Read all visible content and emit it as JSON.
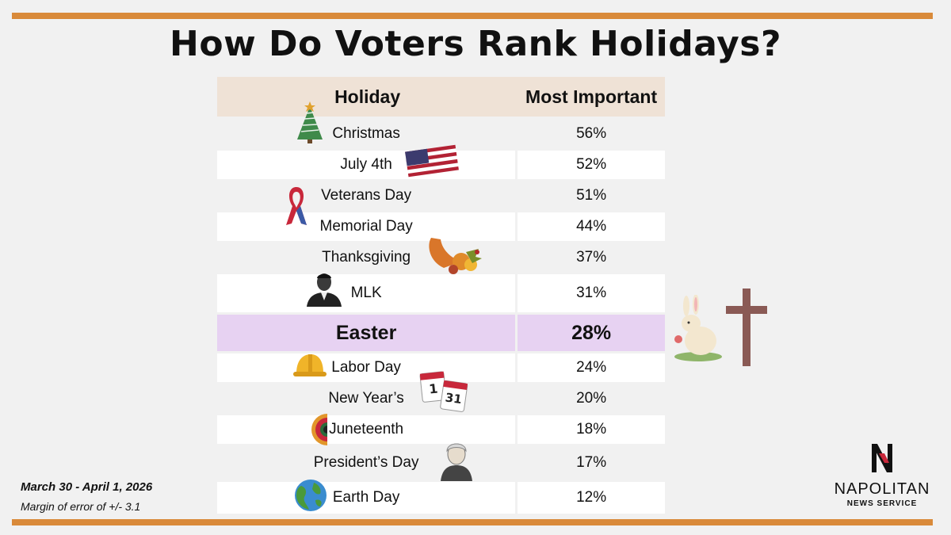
{
  "title": "How Do Voters Rank Holidays?",
  "chart_data": {
    "type": "table",
    "columns": [
      "Holiday",
      "Most Important"
    ],
    "rows": [
      {
        "label": "Christmas",
        "value": "56%",
        "icon": "christmas-tree-icon"
      },
      {
        "label": "July 4th",
        "value": "52%",
        "icon": "american-flag-icon"
      },
      {
        "label": "Veterans Day",
        "value": "51%",
        "icon": "ribbon-icon"
      },
      {
        "label": "Memorial Day",
        "value": "44%",
        "icon": ""
      },
      {
        "label": "Thanksgiving",
        "value": "37%",
        "icon": "cornucopia-icon"
      },
      {
        "label": "MLK",
        "value": "31%",
        "icon": "mlk-portrait-icon"
      },
      {
        "label": "Easter",
        "value": "28%",
        "icon": "easter-bunny-icon",
        "highlight": true
      },
      {
        "label": "Labor Day",
        "value": "24%",
        "icon": "hard-hat-icon"
      },
      {
        "label": "New Year’s",
        "value": "20%",
        "icon": "calendar-icon"
      },
      {
        "label": "Juneteenth",
        "value": "18%",
        "icon": "sunflower-icon"
      },
      {
        "label": "President’s Day",
        "value": "17%",
        "icon": "washington-portrait-icon"
      },
      {
        "label": "Earth Day",
        "value": "12%",
        "icon": "globe-icon"
      }
    ],
    "highlight_color": "#e7d2f2",
    "header_color": "#efe2d6"
  },
  "footer": {
    "dates": "March 30 - April 1, 2026",
    "margin": "Margin of error of +/- 3.1"
  },
  "logo": {
    "brand": "NAPOLITAN",
    "sub": "NEWS SERVICE"
  },
  "colors": {
    "accent": "#d98a3a",
    "background": "#f1f1f1"
  }
}
